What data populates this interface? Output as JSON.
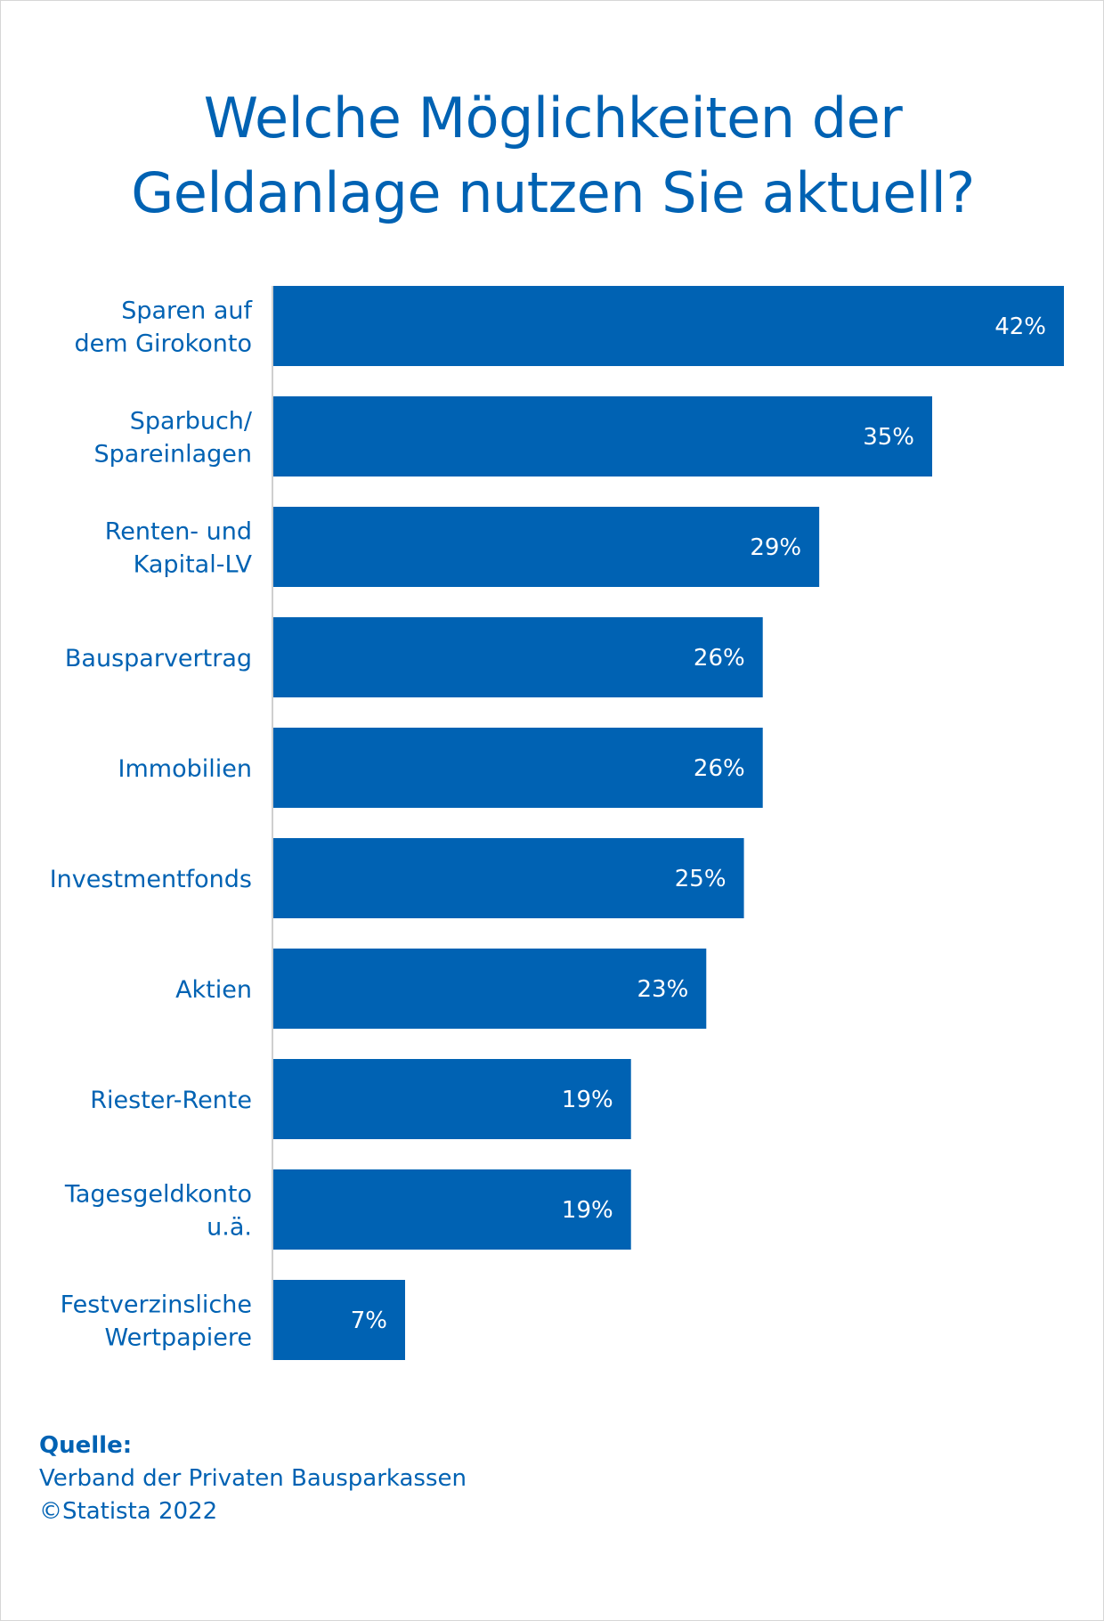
{
  "title_lines": [
    "Welche Möglichkeiten der",
    "Geldanlage nutzen Sie aktuell?"
  ],
  "chart_data": {
    "type": "bar",
    "orientation": "horizontal",
    "title": "Welche Möglichkeiten der Geldanlage nutzen Sie aktuell?",
    "categories": [
      [
        "Sparen auf",
        "dem Girokonto"
      ],
      [
        "Sparbuch/",
        "Spareinlagen"
      ],
      [
        "Renten- und",
        "Kapital-LV"
      ],
      [
        "Bausparvertrag"
      ],
      [
        "Immobilien"
      ],
      [
        "Investmentfonds"
      ],
      [
        "Aktien"
      ],
      [
        "Riester-Rente"
      ],
      [
        "Tagesgeldkonto",
        "u.ä."
      ],
      [
        "Festverzinsliche",
        "Wertpapiere"
      ]
    ],
    "values": [
      42,
      35,
      29,
      26,
      26,
      25,
      23,
      19,
      19,
      7
    ],
    "value_labels": [
      "42%",
      "35%",
      "29%",
      "26%",
      "26%",
      "25%",
      "23%",
      "19%",
      "19%",
      "7%"
    ],
    "xlim": [
      0,
      42
    ],
    "xlabel": "",
    "ylabel": "",
    "grid": false,
    "bar_color": "#0062b3",
    "label_color": "#0062b3",
    "value_label_color": "#ffffff"
  },
  "source": {
    "label": "Quelle:",
    "lines": [
      "Verband der Privaten Bausparkassen",
      "©Statista 2022"
    ]
  }
}
